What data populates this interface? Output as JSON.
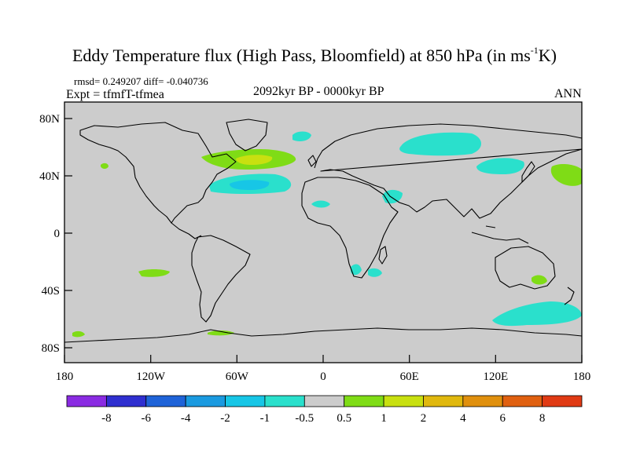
{
  "title": {
    "main": "Eddy Temperature flux (High Pass, Bloomfield) at 850 hPa (in ms",
    "sup": "-1",
    "unit_end": "K)"
  },
  "stats": {
    "rmsd_line": "rmsd= 0.249207 diff= -0.040736"
  },
  "experiment": "Expt = tfmfT-tfmea",
  "period": "2092kyr BP - 0000kyr BP",
  "season": "ANN",
  "axes": {
    "x_ticks": [
      "180",
      "120W",
      "60W",
      "0",
      "60E",
      "120E",
      "180"
    ],
    "y_ticks": [
      "80N",
      "40N",
      "0",
      "40S",
      "80S"
    ]
  },
  "colorbar": {
    "labels": [
      "-8",
      "-6",
      "-4",
      "-2",
      "-1",
      "-0.5",
      "0.5",
      "1",
      "2",
      "4",
      "6",
      "8"
    ],
    "colors": [
      "#8a2be2",
      "#2f2fd0",
      "#1f63d8",
      "#1a9ae0",
      "#17c6e6",
      "#2ae0cc",
      "#cccccc",
      "#7fdc16",
      "#c8e010",
      "#e0b80e",
      "#e0900e",
      "#e06010",
      "#e03a14"
    ]
  },
  "colors": {
    "land_sea_background": "#cccccc",
    "coast": "#000000",
    "neg_small": "#2ae0cc",
    "neg_mid": "#17c6e6",
    "pos_small": "#7fdc16",
    "pos_mid": "#c8e010"
  }
}
